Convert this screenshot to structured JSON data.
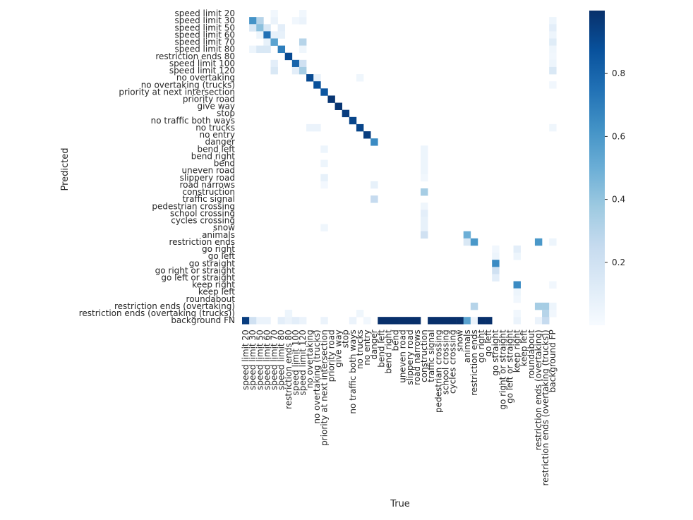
{
  "chart_data": {
    "type": "heatmap",
    "title": "",
    "xlabel": "True",
    "ylabel": "Predicted",
    "x_labels": [
      "speed limit 20",
      "speed limit 30",
      "speed limit 50",
      "speed limit 60",
      "speed limit 70",
      "speed limit 80",
      "restriction ends 80",
      "speed limit 100",
      "speed limit 120",
      "no overtaking",
      "no overtaking (trucks)",
      "priority at next intersection",
      "priority road",
      "give way",
      "stop",
      "no traffic both ways",
      "no trucks",
      "no entry",
      "danger",
      "bend left",
      "bend right",
      "bend",
      "uneven road",
      "slippery road",
      "road narrows",
      "construction",
      "traffic signal",
      "pedestrian crossing",
      "school crossing",
      "cycles crossing",
      "snow",
      "animals",
      "restriction ends",
      "go right",
      "go left",
      "go straight",
      "go right or straight",
      "go left or straight",
      "keep right",
      "keep left",
      "roundabout",
      "restriction ends (overtaking)",
      "restriction ends (overtaking (trucks))",
      "background FP"
    ],
    "y_labels": [
      "speed limit 20",
      "speed limit 30",
      "speed limit 50",
      "speed limit 60",
      "speed limit 70",
      "speed limit 80",
      "restriction ends 80",
      "speed limit 100",
      "speed limit 120",
      "no overtaking",
      "no overtaking (trucks)",
      "priority at next intersection",
      "priority road",
      "give way",
      "stop",
      "no traffic both ways",
      "no trucks",
      "no entry",
      "danger",
      "bend left",
      "bend right",
      "bend",
      "uneven road",
      "slippery road",
      "road narrows",
      "construction",
      "traffic signal",
      "pedestrian crossing",
      "school crossing",
      "cycles crossing",
      "snow",
      "animals",
      "restriction ends",
      "go right",
      "go left",
      "go straight",
      "go right or straight",
      "go left or straight",
      "keep right",
      "keep left",
      "roundabout",
      "restriction ends (overtaking)",
      "restriction ends (overtaking (trucks))",
      "background FN"
    ],
    "colorbar": {
      "min": 0,
      "max": 1,
      "ticks": [
        0.2,
        0.4,
        0.6,
        0.8
      ],
      "colormap": "Blues"
    },
    "cells": [
      [
        0,
        4,
        0.03
      ],
      [
        0,
        8,
        0.03
      ],
      [
        1,
        1,
        0.62
      ],
      [
        1,
        2,
        0.3
      ],
      [
        1,
        4,
        0.06
      ],
      [
        1,
        8,
        0.06
      ],
      [
        1,
        7,
        0.03
      ],
      [
        1,
        43,
        0.05
      ],
      [
        2,
        1,
        0.15
      ],
      [
        2,
        2,
        0.42
      ],
      [
        2,
        3,
        0.15
      ],
      [
        2,
        5,
        0.1
      ],
      [
        2,
        43,
        0.1
      ],
      [
        3,
        2,
        0.05
      ],
      [
        3,
        3,
        0.75
      ],
      [
        3,
        4,
        0.08
      ],
      [
        3,
        5,
        0.08
      ],
      [
        3,
        43,
        0.05
      ],
      [
        4,
        3,
        0.08
      ],
      [
        4,
        4,
        0.55
      ],
      [
        4,
        8,
        0.3
      ],
      [
        4,
        43,
        0.12
      ],
      [
        5,
        1,
        0.05
      ],
      [
        5,
        2,
        0.15
      ],
      [
        5,
        3,
        0.15
      ],
      [
        5,
        5,
        0.7
      ],
      [
        5,
        8,
        0.04
      ],
      [
        5,
        43,
        0.04
      ],
      [
        6,
        6,
        0.9
      ],
      [
        6,
        43,
        0.03
      ],
      [
        7,
        4,
        0.1
      ],
      [
        7,
        7,
        0.8
      ],
      [
        7,
        8,
        0.2
      ],
      [
        7,
        43,
        0.05
      ],
      [
        8,
        4,
        0.15
      ],
      [
        8,
        7,
        0.1
      ],
      [
        8,
        8,
        0.35
      ],
      [
        8,
        43,
        0.15
      ],
      [
        9,
        9,
        0.9
      ],
      [
        9,
        10,
        0.08
      ],
      [
        9,
        16,
        0.04
      ],
      [
        10,
        10,
        0.88
      ],
      [
        10,
        43,
        0.03
      ],
      [
        11,
        11,
        0.85
      ],
      [
        12,
        12,
        0.98
      ],
      [
        13,
        13,
        0.98
      ],
      [
        14,
        14,
        0.95
      ],
      [
        15,
        15,
        0.92
      ],
      [
        16,
        9,
        0.06
      ],
      [
        16,
        10,
        0.06
      ],
      [
        16,
        16,
        0.92
      ],
      [
        16,
        43,
        0.04
      ],
      [
        17,
        17,
        0.95
      ],
      [
        18,
        18,
        0.65
      ],
      [
        19,
        11,
        0.05
      ],
      [
        19,
        25,
        0.05
      ],
      [
        20,
        25,
        0.05
      ],
      [
        21,
        11,
        0.05
      ],
      [
        21,
        25,
        0.05
      ],
      [
        22,
        25,
        0.05
      ],
      [
        23,
        11,
        0.08
      ],
      [
        23,
        25,
        0.03
      ],
      [
        24,
        11,
        0.02
      ],
      [
        24,
        18,
        0.08
      ],
      [
        25,
        25,
        0.35
      ],
      [
        26,
        18,
        0.25
      ],
      [
        27,
        25,
        0.04
      ],
      [
        28,
        25,
        0.1
      ],
      [
        29,
        25,
        0.08
      ],
      [
        30,
        11,
        0.04
      ],
      [
        30,
        25,
        0.08
      ],
      [
        31,
        25,
        0.2
      ],
      [
        31,
        31,
        0.5
      ],
      [
        32,
        31,
        0.15
      ],
      [
        32,
        32,
        0.6
      ],
      [
        32,
        41,
        0.6
      ],
      [
        32,
        43,
        0.05
      ],
      [
        33,
        35,
        0.03
      ],
      [
        33,
        38,
        0.1
      ],
      [
        34,
        35,
        0.05
      ],
      [
        34,
        38,
        0.05
      ],
      [
        35,
        35,
        0.65
      ],
      [
        36,
        35,
        0.2
      ],
      [
        37,
        35,
        0.1
      ],
      [
        38,
        38,
        0.65
      ],
      [
        38,
        43,
        0.03
      ],
      [
        39,
        38,
        0.05
      ],
      [
        40,
        38,
        0.03
      ],
      [
        41,
        32,
        0.3
      ],
      [
        41,
        41,
        0.35
      ],
      [
        41,
        42,
        0.35
      ],
      [
        41,
        43,
        0.05
      ],
      [
        42,
        6,
        0.05
      ],
      [
        42,
        16,
        0.04
      ],
      [
        42,
        38,
        0.03
      ],
      [
        42,
        42,
        0.3
      ],
      [
        42,
        43,
        0.03
      ],
      [
        43,
        0,
        0.95
      ],
      [
        43,
        1,
        0.2
      ],
      [
        43,
        2,
        0.06
      ],
      [
        43,
        3,
        0.06
      ],
      [
        43,
        5,
        0.1
      ],
      [
        43,
        6,
        0.06
      ],
      [
        43,
        7,
        0.1
      ],
      [
        43,
        8,
        0.06
      ],
      [
        43,
        11,
        0.06
      ],
      [
        43,
        15,
        0.06
      ],
      [
        43,
        17,
        0.03
      ],
      [
        43,
        19,
        1
      ],
      [
        43,
        20,
        1
      ],
      [
        43,
        21,
        1
      ],
      [
        43,
        22,
        1
      ],
      [
        43,
        23,
        1
      ],
      [
        43,
        24,
        1
      ],
      [
        43,
        26,
        1
      ],
      [
        43,
        27,
        1
      ],
      [
        43,
        28,
        1
      ],
      [
        43,
        29,
        1
      ],
      [
        43,
        30,
        1
      ],
      [
        43,
        31,
        0.55
      ],
      [
        43,
        32,
        0.06
      ],
      [
        43,
        33,
        1
      ],
      [
        43,
        34,
        1
      ],
      [
        43,
        38,
        0.06
      ],
      [
        43,
        41,
        0.06
      ],
      [
        43,
        42,
        0.25
      ]
    ]
  }
}
